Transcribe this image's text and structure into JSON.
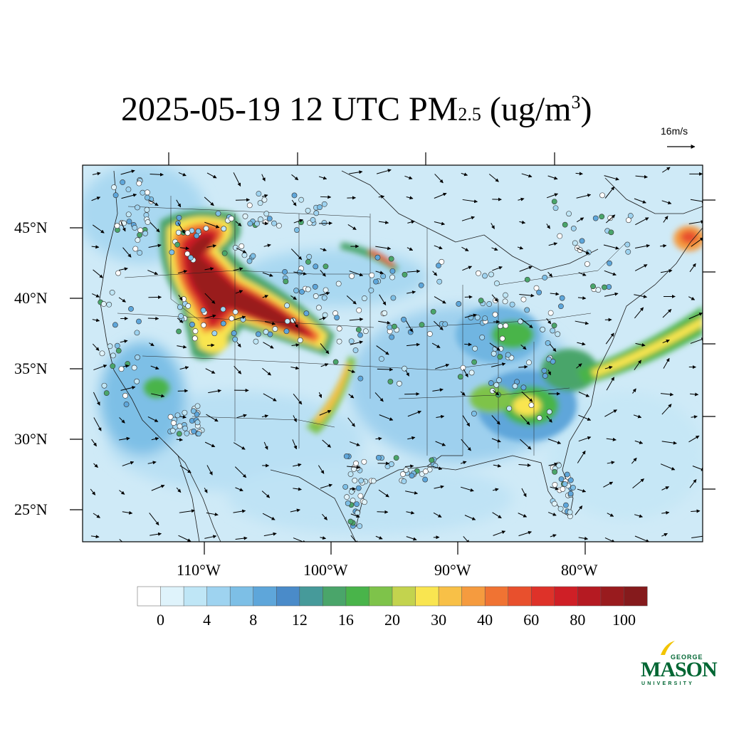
{
  "title": {
    "prefix": "2025-05-19 12 UTC PM",
    "subscript": "2.5",
    "unit_open": " (ug/m",
    "superscript": "3",
    "unit_close": ")"
  },
  "vector_reference": {
    "label": "16m/s",
    "speed_ms": 16
  },
  "axes": {
    "lat_labels": [
      "45°N",
      "40°N",
      "35°N",
      "30°N",
      "25°N"
    ],
    "lon_labels": [
      "110°W",
      "100°W",
      "90°W",
      "80°W"
    ]
  },
  "colorbar": {
    "labels": [
      "0",
      "4",
      "8",
      "12",
      "16",
      "20",
      "30",
      "40",
      "60",
      "80",
      "100"
    ],
    "colors": [
      "#ffffff",
      "#dff3fb",
      "#bfe6f6",
      "#9ed3f0",
      "#7dbfe6",
      "#5ea6da",
      "#4a8bc9",
      "#469a9a",
      "#4aa56a",
      "#49b44a",
      "#7ec34a",
      "#c3d34e",
      "#f9e550",
      "#f8c047",
      "#f59b3f",
      "#f07333",
      "#e8502d",
      "#de3229",
      "#cf1f26",
      "#b51a22",
      "#991b1e",
      "#851a1c"
    ]
  },
  "logo": {
    "line1": "GEORGE",
    "line2": "MASON",
    "line3": "UNIVERSITY",
    "color": "#006633"
  }
}
